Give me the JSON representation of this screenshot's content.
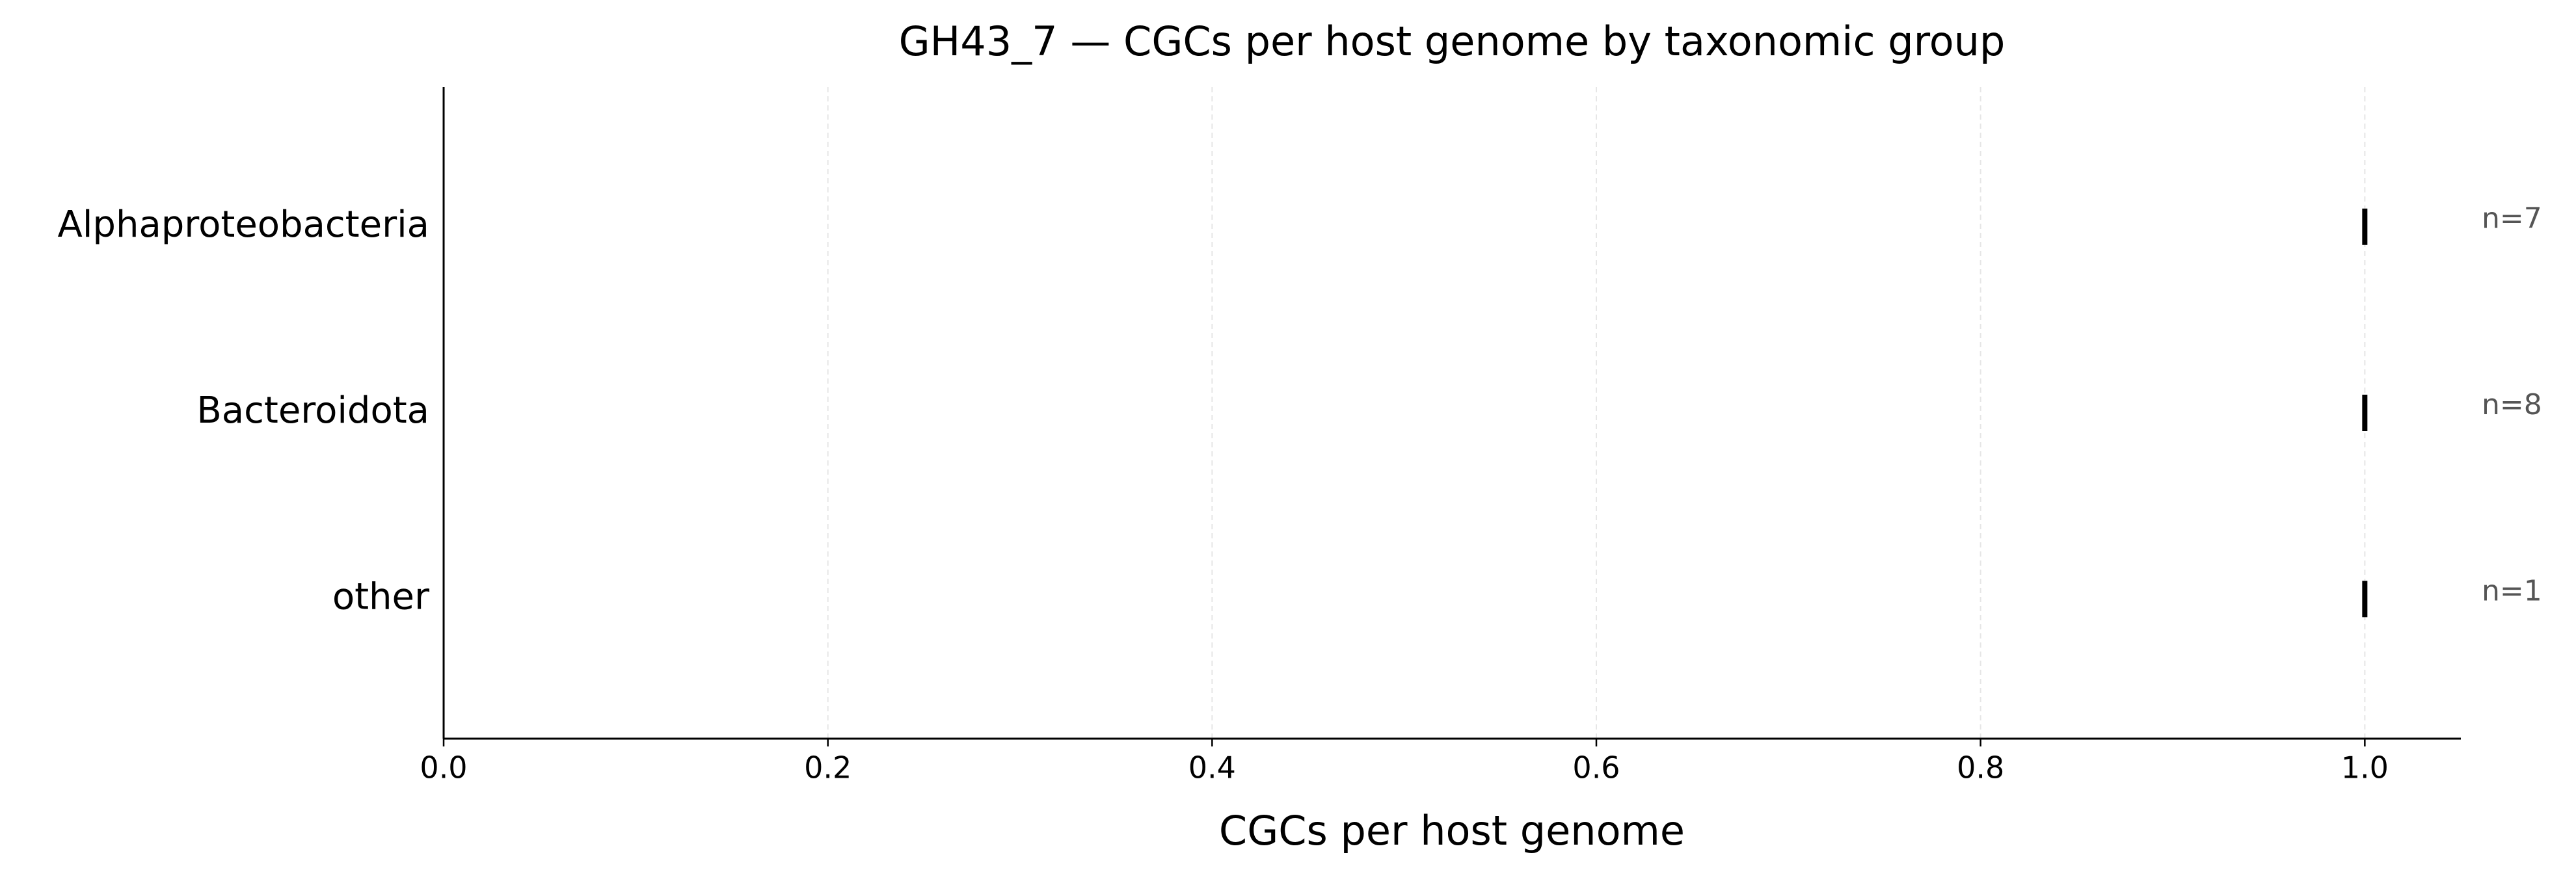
{
  "chart_data": {
    "type": "box",
    "title": "GH43_7 — CGCs per host genome by taxonomic group",
    "x_label": "CGCs per host genome",
    "categories": [
      "Alphaproteobacteria",
      "Bacteroidota",
      "other"
    ],
    "values": [
      1,
      1,
      1
    ],
    "annotations": [
      "n=7",
      "n=8",
      "n=1"
    ],
    "color": "#000000",
    "xlim": [
      0,
      1.05
    ],
    "xticks": [
      {
        "value": 0,
        "label": "0.0"
      },
      0.2,
      0.4,
      0.6,
      0.8,
      {
        "value": 1,
        "label": "1.0"
      }
    ],
    "grid": true
  }
}
